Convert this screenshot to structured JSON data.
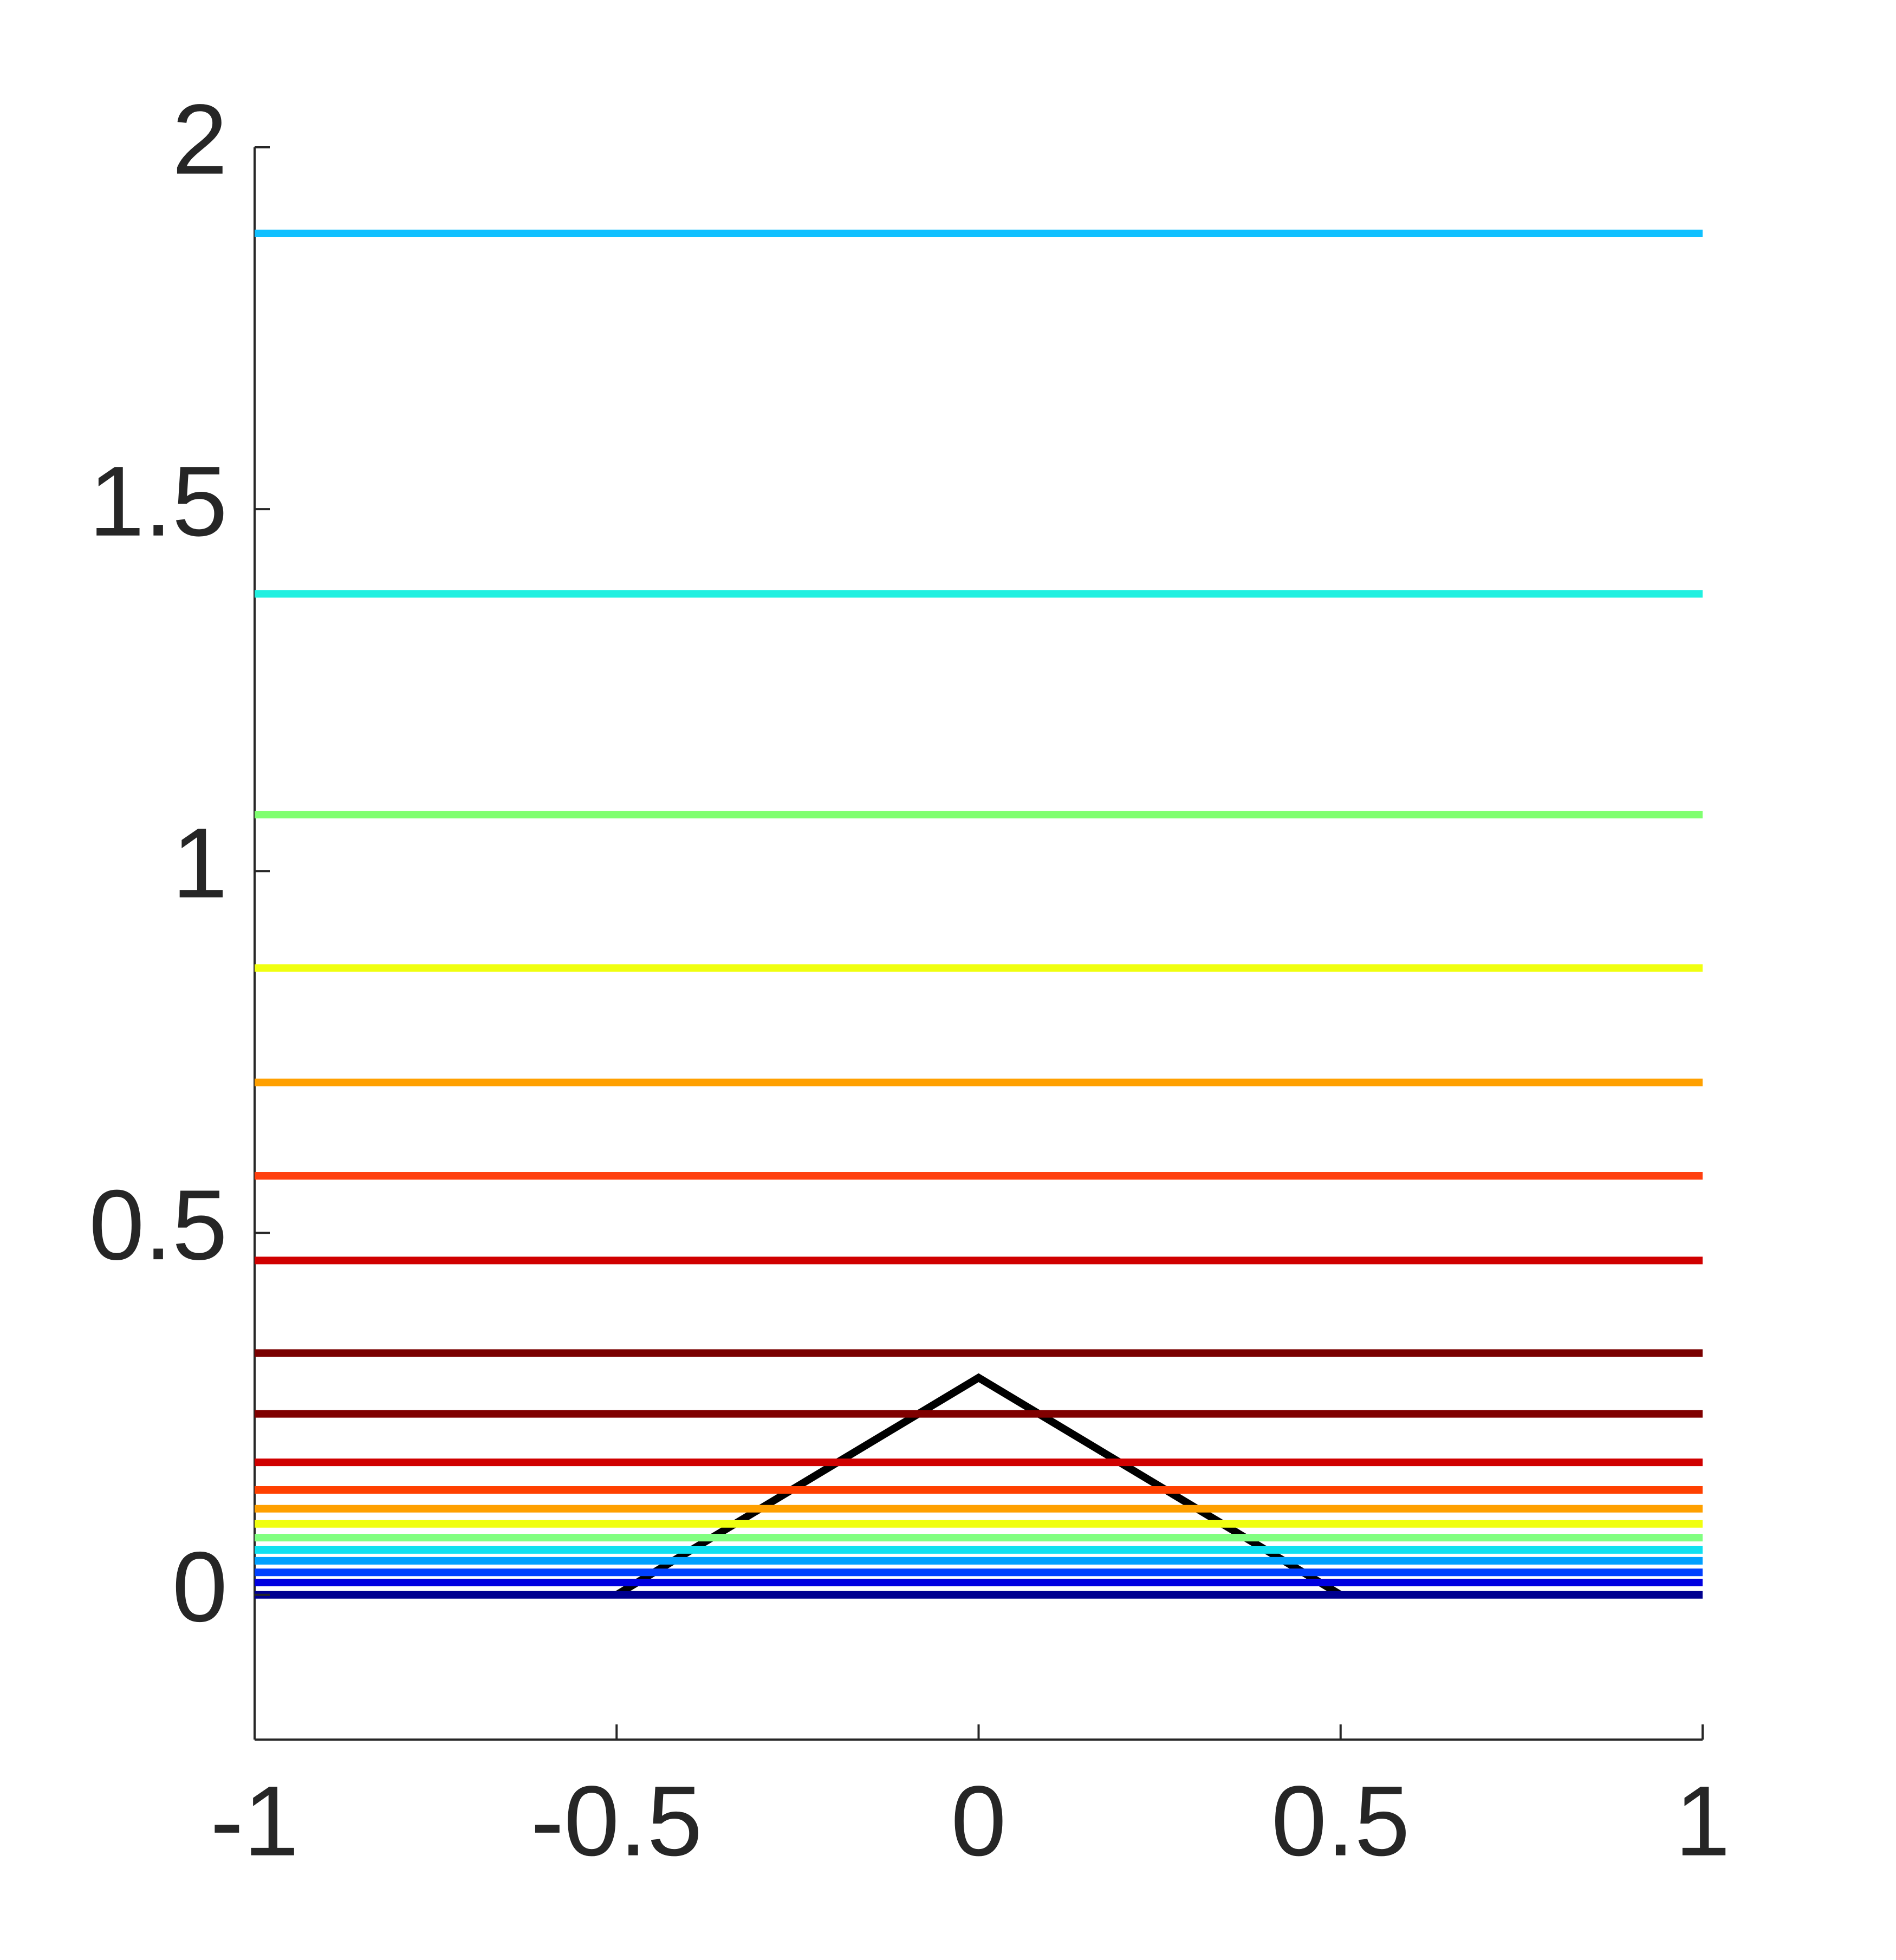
{
  "chart_data": {
    "type": "line",
    "xlim": [
      -1,
      1
    ],
    "ylim": [
      -0.2,
      2
    ],
    "xticks": [
      -1,
      -0.5,
      0,
      0.5,
      1
    ],
    "yticks": [
      0,
      0.5,
      1,
      1.5,
      2
    ],
    "grid": false,
    "series": [
      {
        "color": "#000000",
        "x": [
          -0.5,
          0,
          0.5
        ],
        "values": [
          0,
          0.3,
          0
        ]
      },
      {
        "color": "#000090",
        "x": [
          -1,
          1
        ],
        "values": [
          0,
          0
        ]
      },
      {
        "color": "#0000e0",
        "x": [
          -1,
          1
        ],
        "values": [
          0.017,
          0.017
        ]
      },
      {
        "color": "#0040ff",
        "x": [
          -1,
          1
        ],
        "values": [
          0.031,
          0.031
        ]
      },
      {
        "color": "#00a0ff",
        "x": [
          -1,
          1
        ],
        "values": [
          0.047,
          0.047
        ]
      },
      {
        "color": "#10e0f0",
        "x": [
          -1,
          1
        ],
        "values": [
          0.062,
          0.062
        ]
      },
      {
        "color": "#80ff80",
        "x": [
          -1,
          1
        ],
        "values": [
          0.079,
          0.079
        ]
      },
      {
        "color": "#f0ff10",
        "x": [
          -1,
          1
        ],
        "values": [
          0.098,
          0.098
        ]
      },
      {
        "color": "#ffa000",
        "x": [
          -1,
          1
        ],
        "values": [
          0.119,
          0.119
        ]
      },
      {
        "color": "#ff4000",
        "x": [
          -1,
          1
        ],
        "values": [
          0.145,
          0.145
        ]
      },
      {
        "color": "#d00000",
        "x": [
          -1,
          1
        ],
        "values": [
          0.183,
          0.183
        ]
      },
      {
        "color": "#800000",
        "x": [
          -1,
          1
        ],
        "values": [
          0.25,
          0.25
        ]
      },
      {
        "color": "#7a0000",
        "x": [
          -1,
          1
        ],
        "values": [
          0.334,
          0.334
        ]
      },
      {
        "color": "#d00000",
        "x": [
          -1,
          1
        ],
        "values": [
          0.462,
          0.462
        ]
      },
      {
        "color": "#ff4010",
        "x": [
          -1,
          1
        ],
        "values": [
          0.579,
          0.579
        ]
      },
      {
        "color": "#ffa000",
        "x": [
          -1,
          1
        ],
        "values": [
          0.708,
          0.708
        ]
      },
      {
        "color": "#f0ff10",
        "x": [
          -1,
          1
        ],
        "values": [
          0.866,
          0.866
        ]
      },
      {
        "color": "#80ff70",
        "x": [
          -1,
          1
        ],
        "values": [
          1.078,
          1.078
        ]
      },
      {
        "color": "#20f0e0",
        "x": [
          -1,
          1
        ],
        "values": [
          1.383,
          1.383
        ]
      },
      {
        "color": "#10c0ff",
        "x": [
          -1,
          1
        ],
        "values": [
          1.881,
          1.881
        ]
      }
    ]
  }
}
